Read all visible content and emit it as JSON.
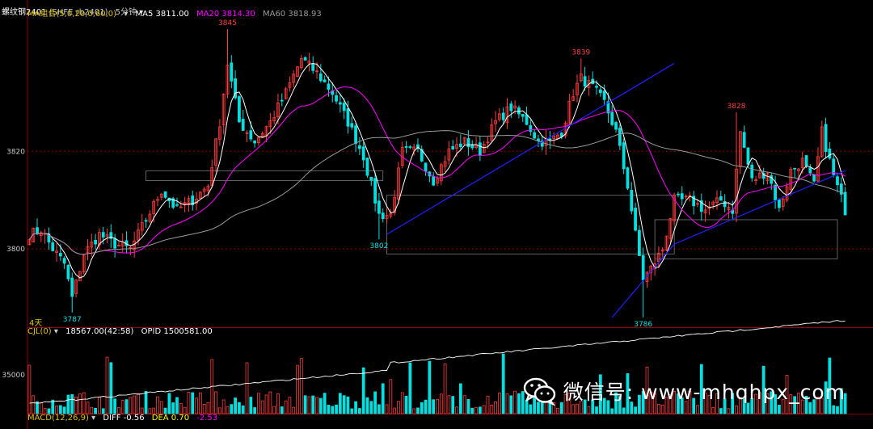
{
  "header": {
    "title": "螺纹钢2401",
    "code": "(SHFE rb2401)",
    "period": "5分钟"
  },
  "ma_legend": {
    "label": "MA组合(5,0,20,0,60,0)",
    "ma5": "MA5 3811.00",
    "ma20": "MA20 3814.30",
    "ma60": "MA60 3818.93",
    "colors": {
      "ma5": "#ffffff",
      "ma20": "#ff00ff",
      "ma60": "#9a9a9a"
    }
  },
  "volume_legend": {
    "label": "CJL(0)",
    "vol": "18567.00(42:58)",
    "opid": "OPID 1500581.00"
  },
  "macd_legend": {
    "label": "MACD(12,26,9)",
    "diff": "DIFF -0.56",
    "dea": "DEA 0.70",
    "macd": "-2.53",
    "colors": {
      "diff": "#ffffff",
      "dea": "#ffff00",
      "macd": "#ff00ff"
    }
  },
  "day_marker": "4天",
  "watermark": {
    "text": "微信号: www-mhqhpx_com"
  },
  "chart_data": {
    "type": "candlestick",
    "title": "",
    "price_axis": {
      "ticks": [
        3820,
        3800
      ],
      "ylim": [
        3784,
        3847
      ]
    },
    "volume_axis": {
      "ticks": [
        35000
      ]
    },
    "annotations": [
      {
        "label": "3845",
        "value": 3845,
        "kind": "high",
        "index": 51
      },
      {
        "label": "3839",
        "value": 3839,
        "kind": "high",
        "index": 142
      },
      {
        "label": "3828",
        "value": 3828,
        "kind": "high",
        "index": 182
      },
      {
        "label": "3787",
        "value": 3787,
        "kind": "low",
        "index": 11
      },
      {
        "label": "3802",
        "value": 3802,
        "kind": "low",
        "index": 90
      },
      {
        "label": "3786",
        "value": 3786,
        "kind": "low",
        "index": 158
      }
    ],
    "waypoints": [
      [
        0,
        3803
      ],
      [
        3,
        3804
      ],
      [
        6,
        3800
      ],
      [
        9,
        3797
      ],
      [
        11,
        3790
      ],
      [
        14,
        3799
      ],
      [
        18,
        3803
      ],
      [
        22,
        3801
      ],
      [
        26,
        3800
      ],
      [
        30,
        3806
      ],
      [
        34,
        3812
      ],
      [
        38,
        3808
      ],
      [
        42,
        3810
      ],
      [
        46,
        3813
      ],
      [
        49,
        3826
      ],
      [
        51,
        3838
      ],
      [
        54,
        3826
      ],
      [
        58,
        3822
      ],
      [
        62,
        3826
      ],
      [
        66,
        3832
      ],
      [
        70,
        3839
      ],
      [
        74,
        3836
      ],
      [
        78,
        3832
      ],
      [
        82,
        3826
      ],
      [
        86,
        3819
      ],
      [
        90,
        3807
      ],
      [
        93,
        3807
      ],
      [
        96,
        3820
      ],
      [
        100,
        3820
      ],
      [
        104,
        3814
      ],
      [
        108,
        3820
      ],
      [
        112,
        3822
      ],
      [
        116,
        3820
      ],
      [
        120,
        3826
      ],
      [
        124,
        3829
      ],
      [
        128,
        3826
      ],
      [
        131,
        3822
      ],
      [
        134,
        3822
      ],
      [
        137,
        3824
      ],
      [
        140,
        3832
      ],
      [
        142,
        3835
      ],
      [
        145,
        3833
      ],
      [
        148,
        3830
      ],
      [
        151,
        3824
      ],
      [
        154,
        3813
      ],
      [
        156,
        3803
      ],
      [
        158,
        3794
      ],
      [
        160,
        3796
      ],
      [
        163,
        3800
      ],
      [
        166,
        3810
      ],
      [
        170,
        3810
      ],
      [
        174,
        3808
      ],
      [
        178,
        3810
      ],
      [
        181,
        3808
      ],
      [
        183,
        3824
      ],
      [
        186,
        3814
      ],
      [
        190,
        3816
      ],
      [
        193,
        3808
      ],
      [
        196,
        3816
      ],
      [
        199,
        3818
      ],
      [
        202,
        3813
      ],
      [
        204,
        3824
      ],
      [
        207,
        3815
      ],
      [
        210,
        3808
      ]
    ],
    "ma_series": [
      {
        "name": "MA5",
        "color": "#ffffff",
        "period": 5
      },
      {
        "name": "MA20",
        "color": "#ff00ff",
        "period": 20
      },
      {
        "name": "MA60",
        "color": "#9a9a9a",
        "period": 60
      }
    ],
    "trendlines": [
      {
        "from": [
          92,
          3803
        ],
        "to": [
          166,
          3838
        ]
      },
      {
        "from": [
          150,
          3786
        ],
        "to": [
          166,
          3801
        ]
      },
      {
        "from": [
          166,
          3801
        ],
        "to": [
          210,
          3816
        ]
      }
    ],
    "boxes": [
      {
        "i0": 92,
        "i1": 166,
        "p0": 3799,
        "p1": 3811
      },
      {
        "i0": 161,
        "i1": 208,
        "p0": 3798,
        "p1": 3806
      },
      {
        "i0": 30,
        "i1": 91,
        "p0": 3814,
        "p1": 3816
      }
    ],
    "reference_lines": [
      3820,
      3800
    ]
  }
}
